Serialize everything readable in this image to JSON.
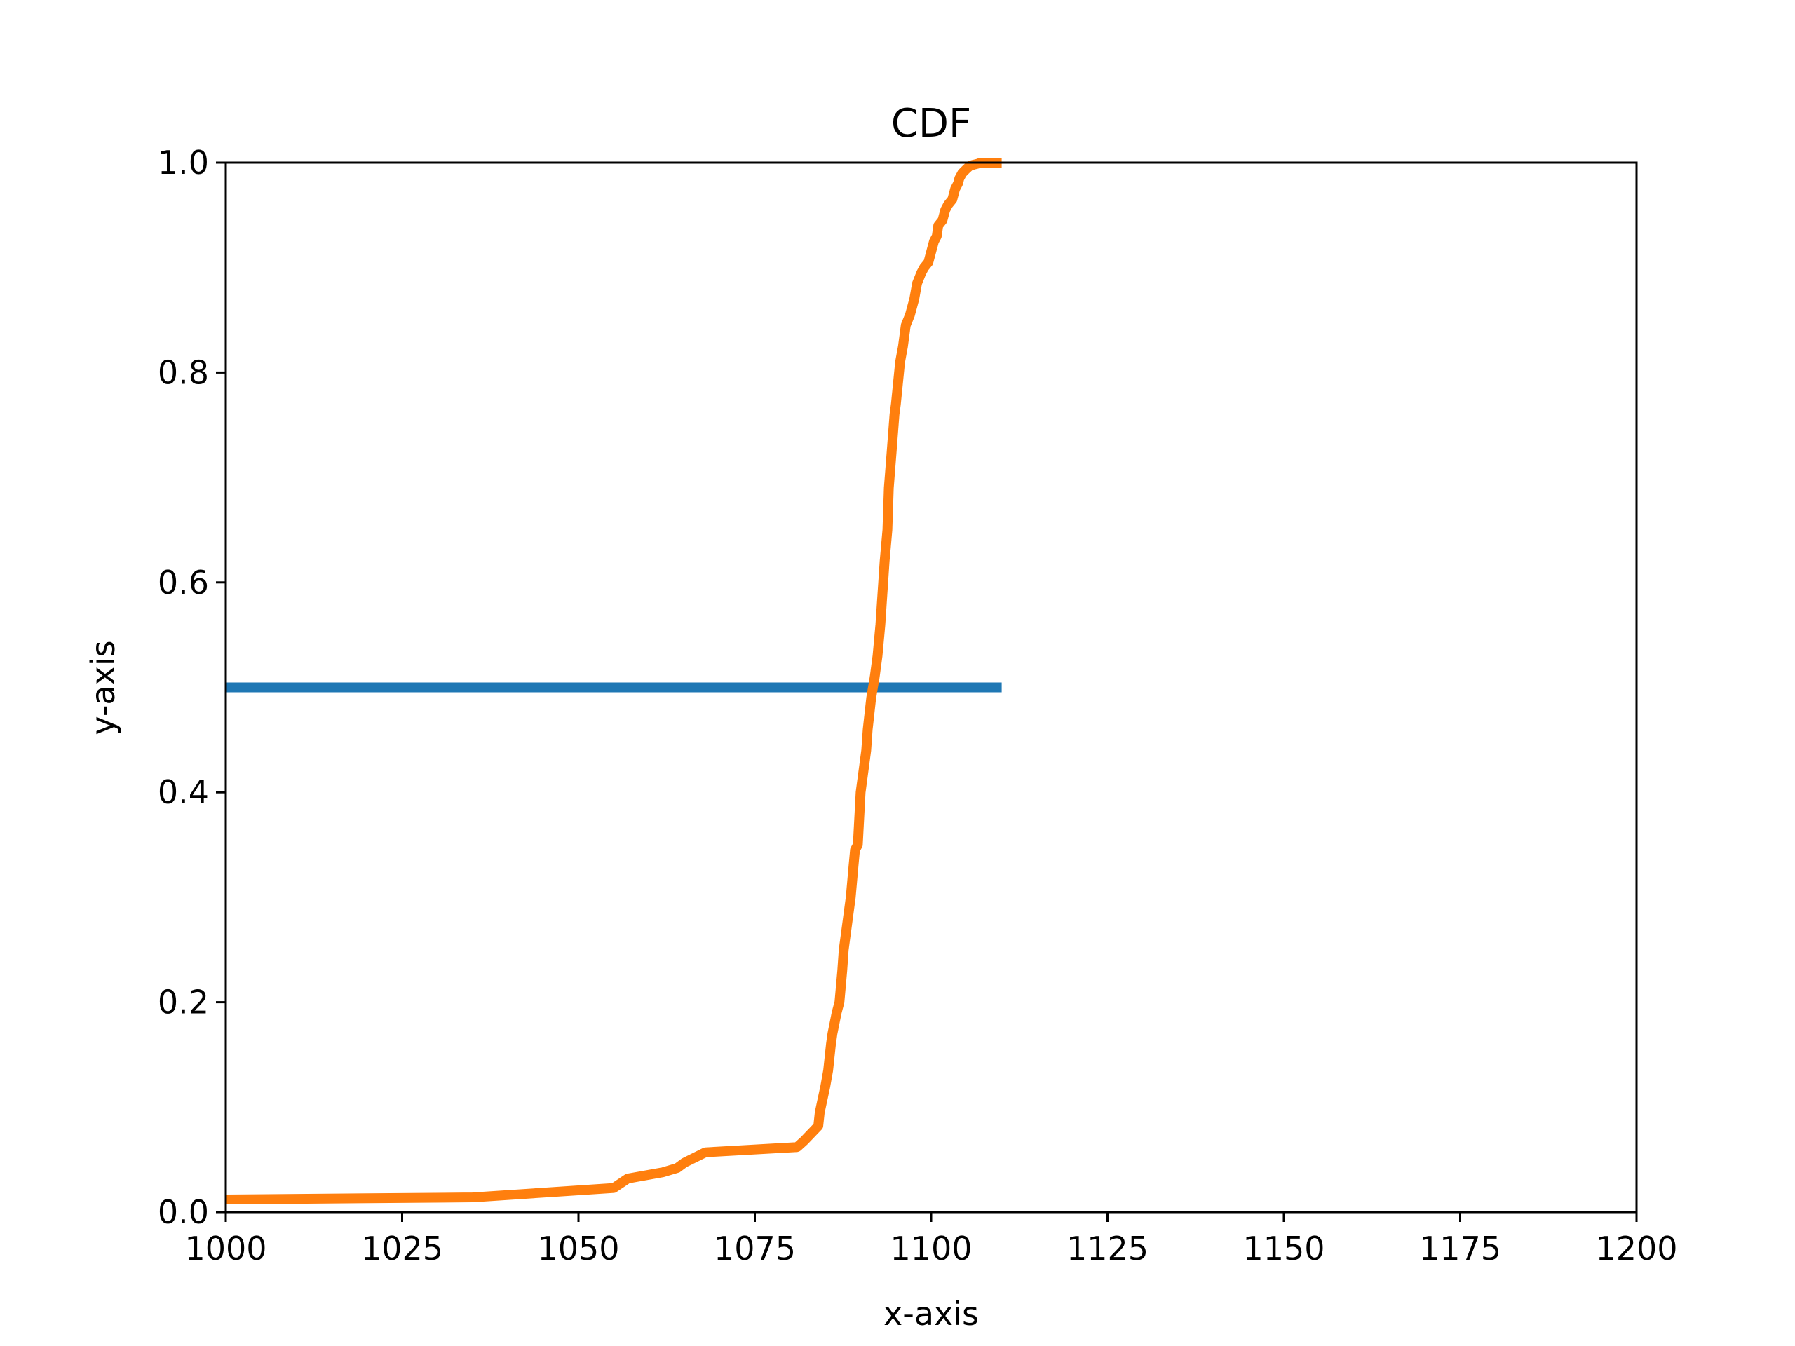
{
  "chart_data": {
    "type": "line",
    "title": "CDF",
    "xlabel": "x-axis",
    "ylabel": "y-axis",
    "xlim": [
      1000,
      1200
    ],
    "ylim": [
      0,
      1
    ],
    "x_ticks": [
      "1000",
      "1025",
      "1050",
      "1075",
      "1100",
      "1125",
      "1150",
      "1175",
      "1200"
    ],
    "y_ticks": [
      "0.0",
      "0.2",
      "0.4",
      "0.6",
      "0.8",
      "1.0"
    ],
    "grid": false,
    "series": [
      {
        "color": "#1f77b4",
        "x": [
          1000,
          1110
        ],
        "y": [
          0.5,
          0.5
        ]
      },
      {
        "color": "#ff7f0e",
        "x": [
          1000,
          1035,
          1055,
          1057,
          1062,
          1064,
          1065,
          1068,
          1081,
          1082,
          1084,
          1084.2,
          1085,
          1085.4,
          1085.8,
          1086,
          1086.6,
          1087,
          1087.4,
          1087.6,
          1088,
          1088.6,
          1089,
          1089.2,
          1089.6,
          1090,
          1090.4,
          1090.8,
          1091,
          1091.5,
          1092,
          1092.4,
          1092.8,
          1093,
          1093.4,
          1093.8,
          1094,
          1094.4,
          1094.8,
          1095,
          1095.3,
          1095.6,
          1096,
          1096.4,
          1097,
          1097.6,
          1098,
          1098.6,
          1099,
          1099.6,
          1100,
          1100.4,
          1100.8,
          1101,
          1101.6,
          1102,
          1102.4,
          1103,
          1103.4,
          1103.8,
          1104,
          1104.4,
          1105,
          1105.5,
          1106,
          1106.6,
          1107,
          1108,
          1110
        ],
        "y": [
          0.012,
          0.014,
          0.023,
          0.032,
          0.038,
          0.042,
          0.047,
          0.057,
          0.062,
          0.068,
          0.082,
          0.095,
          0.12,
          0.135,
          0.16,
          0.17,
          0.19,
          0.2,
          0.23,
          0.25,
          0.27,
          0.3,
          0.33,
          0.345,
          0.35,
          0.4,
          0.42,
          0.44,
          0.46,
          0.49,
          0.51,
          0.53,
          0.56,
          0.58,
          0.62,
          0.65,
          0.69,
          0.725,
          0.76,
          0.77,
          0.79,
          0.81,
          0.825,
          0.845,
          0.855,
          0.87,
          0.885,
          0.895,
          0.9,
          0.905,
          0.915,
          0.925,
          0.93,
          0.94,
          0.945,
          0.955,
          0.96,
          0.965,
          0.975,
          0.98,
          0.985,
          0.99,
          0.994,
          0.997,
          0.998,
          0.999,
          1.0,
          1.0,
          1.0
        ]
      }
    ]
  }
}
